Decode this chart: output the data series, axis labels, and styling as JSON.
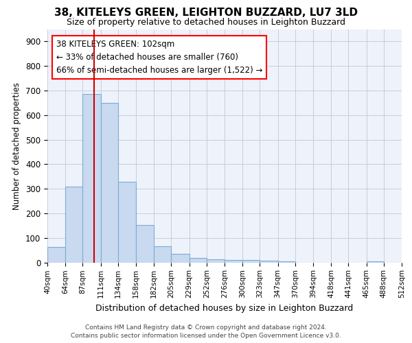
{
  "title": "38, KITELEYS GREEN, LEIGHTON BUZZARD, LU7 3LD",
  "subtitle": "Size of property relative to detached houses in Leighton Buzzard",
  "xlabel": "Distribution of detached houses by size in Leighton Buzzard",
  "ylabel": "Number of detached properties",
  "footer_line1": "Contains HM Land Registry data © Crown copyright and database right 2024.",
  "footer_line2": "Contains public sector information licensed under the Open Government Licence v3.0.",
  "annotation_line1": "38 KITELEYS GREEN: 102sqm",
  "annotation_line2": "← 33% of detached houses are smaller (760)",
  "annotation_line3": "66% of semi-detached houses are larger (1,522) →",
  "bar_color": "#c8d9f0",
  "bar_edge_color": "#7aadd4",
  "vline_color": "#cc0000",
  "vline_x": 102,
  "bin_edges": [
    40,
    64,
    87,
    111,
    134,
    158,
    182,
    205,
    229,
    252,
    276,
    300,
    323,
    347,
    370,
    394,
    418,
    441,
    465,
    488,
    512
  ],
  "bar_heights": [
    62,
    310,
    685,
    650,
    328,
    152,
    65,
    35,
    18,
    13,
    10,
    10,
    8,
    5,
    0,
    0,
    0,
    0,
    5,
    0
  ],
  "ylim": [
    0,
    950
  ],
  "yticks": [
    0,
    100,
    200,
    300,
    400,
    500,
    600,
    700,
    800,
    900
  ],
  "background_color": "#eef2fa",
  "grid_color": "#c0c8d8"
}
